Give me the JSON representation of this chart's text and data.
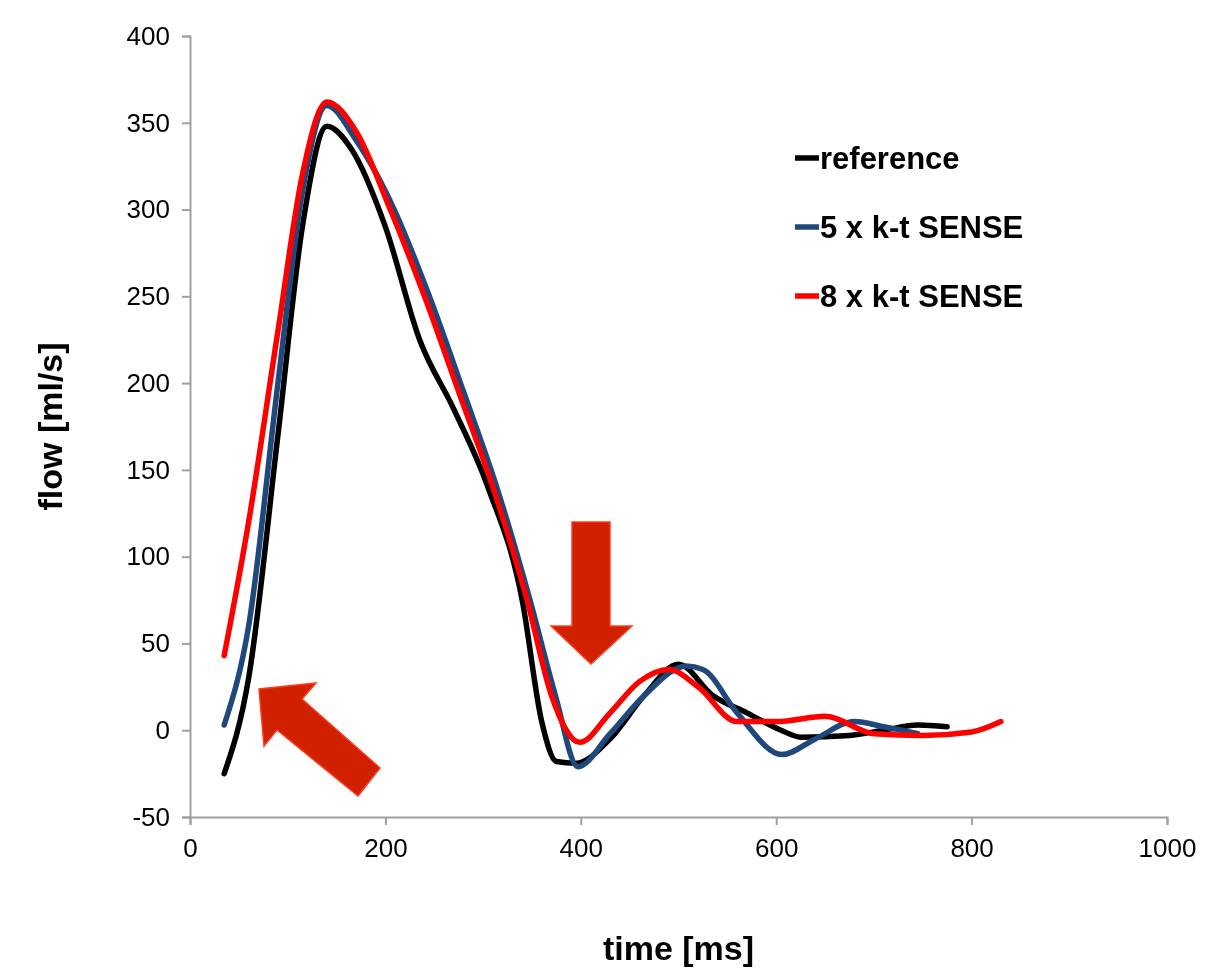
{
  "chart_data": {
    "type": "line",
    "xlabel": "time [ms]",
    "ylabel": "flow [ml/s]",
    "xlim": [
      0,
      1000
    ],
    "xticks": [
      0,
      200,
      400,
      600,
      800,
      1000
    ],
    "ylim": [
      -50,
      400
    ],
    "yticks": [
      -50,
      0,
      50,
      100,
      150,
      200,
      250,
      300,
      350,
      400
    ],
    "legend": "top right",
    "grid": false,
    "marker": "none",
    "line_style": "solid",
    "series": [
      {
        "name": "reference",
        "color": "#000000",
        "x": [
          35,
          60,
          90,
          115,
          140,
          165,
          200,
          235,
          270,
          305,
          340,
          360,
          375,
          395,
          430,
          465,
          500,
          535,
          570,
          605,
          625,
          675,
          710,
          745,
          775
        ],
        "values": [
          -25,
          30,
          170,
          290,
          348,
          335,
          290,
          225,
          185,
          140,
          75,
          5,
          -18,
          -19,
          -5,
          20,
          38,
          20,
          10,
          0,
          -4,
          -3,
          0,
          3,
          2
        ]
      },
      {
        "name": "5 x k-t SENSE",
        "color": "#1f497d",
        "x": [
          35,
          60,
          90,
          115,
          140,
          170,
          209,
          245,
          280,
          314,
          348,
          374,
          397,
          430,
          465,
          508,
          525,
          560,
          606,
          640,
          680,
          710,
          745
        ],
        "values": [
          3,
          60,
          200,
          310,
          360,
          340,
          300,
          250,
          195,
          140,
          75,
          20,
          -21,
          -2,
          20,
          37,
          35,
          10,
          -14,
          -5,
          5,
          2,
          -2
        ]
      },
      {
        "name": "8 x k-t SENSE",
        "color": "#ff0000",
        "x": [
          35,
          60,
          90,
          115,
          140,
          170,
          205,
          240,
          275,
          310,
          345,
          370,
          399,
          430,
          460,
          490,
          520,
          560,
          600,
          650,
          700,
          750,
          800,
          830
        ],
        "values": [
          43,
          120,
          230,
          320,
          362,
          345,
          300,
          250,
          195,
          140,
          75,
          20,
          -7,
          10,
          28,
          35,
          25,
          5,
          5,
          8,
          -2,
          -3,
          -1,
          5
        ]
      }
    ]
  }
}
